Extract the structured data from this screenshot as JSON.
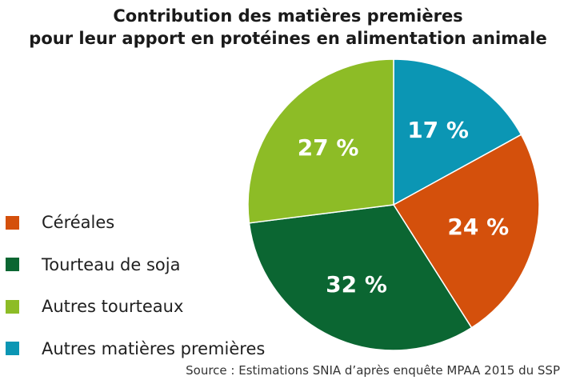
{
  "chart_data": {
    "type": "pie",
    "title": "Contribution des matières premières pour leur apport en protéines en alimentation animale",
    "title_lines": [
      "Contribution des matières premières",
      "pour leur apport en protéines en alimentation animale"
    ],
    "start": "12 o'clock, clockwise",
    "slices": [
      {
        "name": "Autres matières premières",
        "value": 17,
        "label": "17 %",
        "color": "#0b96b4"
      },
      {
        "name": "Céréales",
        "value": 24,
        "label": "24 %",
        "color": "#d4500c"
      },
      {
        "name": "Tourteau de soja",
        "value": 32,
        "label": "32 %",
        "color": "#0b6632"
      },
      {
        "name": "Autres tourteaux",
        "value": 27,
        "label": "27 %",
        "color": "#8dbc26"
      }
    ],
    "legend": {
      "placement": "left",
      "items": [
        {
          "label": "Céréales",
          "color": "#d4500c"
        },
        {
          "label": "Tourteau de soja",
          "color": "#0b6632"
        },
        {
          "label": "Autres tourteaux",
          "color": "#8dbc26"
        },
        {
          "label": "Autres matières premières",
          "color": "#0b96b4"
        }
      ]
    },
    "source": "Source : Estimations SNIA d’après enquête MPAA 2015 du SSP"
  }
}
